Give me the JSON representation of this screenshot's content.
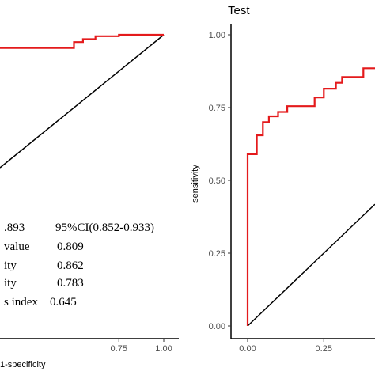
{
  "chart_data": [
    {
      "type": "line",
      "title": "",
      "xlabel": "1-specificity",
      "ylabel": "",
      "xlim": [
        0,
        1
      ],
      "ylim": [
        0,
        1
      ],
      "x_ticks": [
        "0.75",
        "1.00"
      ],
      "series": [
        {
          "color": "#e41a1c",
          "x": [
            0.42,
            0.5,
            0.5,
            0.55,
            0.55,
            0.62,
            0.62,
            0.75,
            0.75,
            1.0
          ],
          "y": [
            0.955,
            0.955,
            0.975,
            0.975,
            0.985,
            0.985,
            0.995,
            0.995,
            1.0,
            1.0
          ]
        }
      ],
      "reference_line": {
        "color": "#000000",
        "x": [
          0,
          1
        ],
        "y": [
          0,
          1
        ]
      },
      "annotations": [
        {
          "label": ".893",
          "label2": "95%CI(0.852-0.933)"
        },
        {
          "label": "value",
          "value": "0.809"
        },
        {
          "label": "ity",
          "value": "0.862"
        },
        {
          "label": "ity",
          "value": "0.783"
        },
        {
          "label": "s index",
          "value": "0.645"
        }
      ]
    },
    {
      "type": "line",
      "title": "Test",
      "xlabel": "",
      "ylabel": "sensitivity",
      "xlim": [
        0,
        1
      ],
      "ylim": [
        0,
        1
      ],
      "x_ticks": [
        "0.00",
        "0.25"
      ],
      "y_ticks": [
        "0.00",
        "0.25",
        "0.50",
        "0.75",
        "1.00"
      ],
      "series": [
        {
          "color": "#e41a1c",
          "x": [
            0.0,
            0.0,
            0.03,
            0.03,
            0.05,
            0.05,
            0.07,
            0.07,
            0.1,
            0.1,
            0.13,
            0.13,
            0.22,
            0.22,
            0.25,
            0.25,
            0.29,
            0.29,
            0.31,
            0.31,
            0.38,
            0.38,
            0.5
          ],
          "y": [
            0.0,
            0.59,
            0.59,
            0.655,
            0.655,
            0.7,
            0.7,
            0.72,
            0.72,
            0.735,
            0.735,
            0.755,
            0.755,
            0.785,
            0.785,
            0.815,
            0.815,
            0.835,
            0.835,
            0.855,
            0.855,
            0.885,
            0.885
          ]
        }
      ],
      "reference_line": {
        "color": "#000000",
        "x": [
          0,
          1
        ],
        "y": [
          0,
          1
        ]
      }
    }
  ]
}
